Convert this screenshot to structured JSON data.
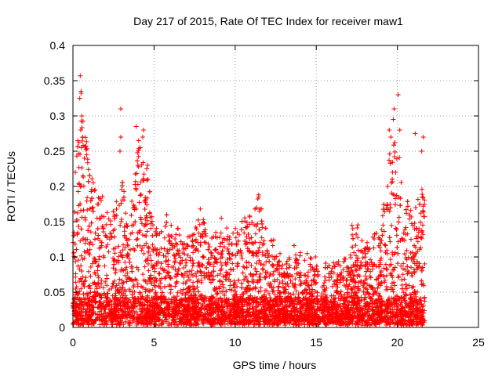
{
  "chart_data": {
    "type": "scatter",
    "title": "Day 217 of 2015, Rate Of TEC Index for receiver maw1",
    "xlabel": "GPS time / hours",
    "ylabel": "ROTI / TECUs",
    "xlim": [
      0,
      25
    ],
    "ylim": [
      0,
      0.4
    ],
    "x_ticks": [
      "0",
      "5",
      "10",
      "15",
      "20",
      "25"
    ],
    "y_ticks": [
      "0",
      "0.05",
      "0.1",
      "0.15",
      "0.2",
      "0.25",
      "0.3",
      "0.35",
      "0.4"
    ],
    "grid": true,
    "marker": "+",
    "color": "#ff0000",
    "envelope": {
      "x": [
        0,
        0.3,
        0.5,
        1.0,
        1.5,
        2.0,
        2.5,
        3.0,
        3.5,
        4.0,
        4.5,
        5.0,
        6.0,
        7.0,
        8.0,
        9.0,
        10.0,
        11.0,
        11.5,
        12.0,
        13.0,
        14.0,
        15.0,
        16.0,
        17.0,
        17.5,
        18.0,
        18.5,
        19.0,
        19.5,
        20.0,
        20.5,
        21.0,
        21.5,
        21.7
      ],
      "ymax": [
        0.16,
        0.26,
        0.33,
        0.22,
        0.19,
        0.17,
        0.16,
        0.2,
        0.14,
        0.26,
        0.22,
        0.14,
        0.15,
        0.12,
        0.15,
        0.13,
        0.13,
        0.16,
        0.18,
        0.12,
        0.11,
        0.1,
        0.08,
        0.08,
        0.1,
        0.14,
        0.11,
        0.12,
        0.14,
        0.25,
        0.27,
        0.18,
        0.15,
        0.2,
        0.17
      ]
    },
    "points": [
      {
        "x": 0.45,
        "y": 0.357
      },
      {
        "x": 0.5,
        "y": 0.335
      },
      {
        "x": 0.42,
        "y": 0.325
      },
      {
        "x": 0.55,
        "y": 0.3
      },
      {
        "x": 0.48,
        "y": 0.28
      },
      {
        "x": 0.3,
        "y": 0.265
      },
      {
        "x": 0.6,
        "y": 0.27
      },
      {
        "x": 0.15,
        "y": 0.22
      },
      {
        "x": 0.7,
        "y": 0.24
      },
      {
        "x": 2.95,
        "y": 0.31
      },
      {
        "x": 2.95,
        "y": 0.27
      },
      {
        "x": 2.9,
        "y": 0.25
      },
      {
        "x": 3.9,
        "y": 0.285
      },
      {
        "x": 4.35,
        "y": 0.28
      },
      {
        "x": 4.3,
        "y": 0.27
      },
      {
        "x": 4.05,
        "y": 0.265
      },
      {
        "x": 4.15,
        "y": 0.255
      },
      {
        "x": 4.0,
        "y": 0.23
      },
      {
        "x": 4.6,
        "y": 0.23
      },
      {
        "x": 4.55,
        "y": 0.225
      },
      {
        "x": 20.05,
        "y": 0.33
      },
      {
        "x": 19.8,
        "y": 0.31
      },
      {
        "x": 19.75,
        "y": 0.295
      },
      {
        "x": 19.5,
        "y": 0.28
      },
      {
        "x": 19.6,
        "y": 0.27
      },
      {
        "x": 20.15,
        "y": 0.28
      },
      {
        "x": 21.1,
        "y": 0.275
      },
      {
        "x": 21.6,
        "y": 0.27
      },
      {
        "x": 21.5,
        "y": 0.25
      },
      {
        "x": 19.4,
        "y": 0.2
      },
      {
        "x": 19.9,
        "y": 0.22
      },
      {
        "x": 11.45,
        "y": 0.188
      },
      {
        "x": 11.45,
        "y": 0.185
      },
      {
        "x": 9.15,
        "y": 0.155
      },
      {
        "x": 11.6,
        "y": 0.168
      },
      {
        "x": 11.5,
        "y": 0.165
      },
      {
        "x": 7.85,
        "y": 0.168
      },
      {
        "x": 17.2,
        "y": 0.145
      },
      {
        "x": 17.25,
        "y": 0.14
      },
      {
        "x": 14.95,
        "y": 0.1
      },
      {
        "x": 15.7,
        "y": 0.085
      }
    ]
  }
}
